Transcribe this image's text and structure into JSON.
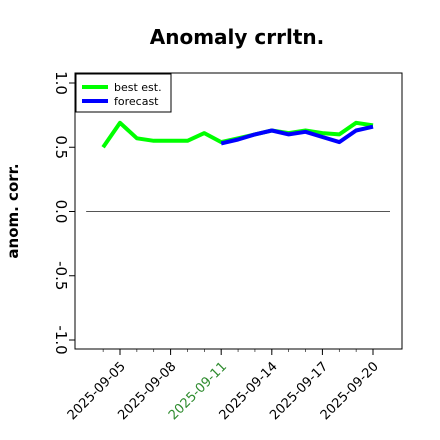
{
  "chart_data": {
    "type": "line",
    "title": "Anomaly crrltn.",
    "xlabel": "",
    "ylabel": "anom. corr.",
    "ylim": [
      -1.0,
      1.0
    ],
    "yticks": [
      "-1.0",
      "-0.5",
      "0.0",
      "0.5",
      "1.0"
    ],
    "x_tick_labels": [
      "2025-09-05",
      "2025-09-08",
      "2025-09-11",
      "2025-09-14",
      "2025-09-17",
      "2025-09-20"
    ],
    "highlighted_tick": "2025-09-11",
    "highlight_color": "#2e8b2e",
    "reference_line_y": 0.0,
    "legend_placement": "top-left",
    "grid": false,
    "series": [
      {
        "name": "best est.",
        "color": "#00ff00",
        "points": [
          {
            "x": "2025-09-04",
            "y": 0.5
          },
          {
            "x": "2025-09-05",
            "y": 0.69
          },
          {
            "x": "2025-09-06",
            "y": 0.57
          },
          {
            "x": "2025-09-07",
            "y": 0.55
          },
          {
            "x": "2025-09-08",
            "y": 0.55
          },
          {
            "x": "2025-09-09",
            "y": 0.55
          },
          {
            "x": "2025-09-10",
            "y": 0.61
          },
          {
            "x": "2025-09-11",
            "y": 0.54
          },
          {
            "x": "2025-09-12",
            "y": 0.57
          },
          {
            "x": "2025-09-13",
            "y": 0.6
          },
          {
            "x": "2025-09-14",
            "y": 0.63
          },
          {
            "x": "2025-09-15",
            "y": 0.61
          },
          {
            "x": "2025-09-16",
            "y": 0.63
          },
          {
            "x": "2025-09-17",
            "y": 0.61
          },
          {
            "x": "2025-09-18",
            "y": 0.6
          },
          {
            "x": "2025-09-19",
            "y": 0.69
          },
          {
            "x": "2025-09-20",
            "y": 0.67
          }
        ]
      },
      {
        "name": "forecast",
        "color": "#0000ff",
        "points": [
          {
            "x": "2025-09-11",
            "y": 0.53
          },
          {
            "x": "2025-09-12",
            "y": 0.56
          },
          {
            "x": "2025-09-13",
            "y": 0.6
          },
          {
            "x": "2025-09-14",
            "y": 0.63
          },
          {
            "x": "2025-09-15",
            "y": 0.6
          },
          {
            "x": "2025-09-16",
            "y": 0.62
          },
          {
            "x": "2025-09-17",
            "y": 0.58
          },
          {
            "x": "2025-09-18",
            "y": 0.54
          },
          {
            "x": "2025-09-19",
            "y": 0.63
          },
          {
            "x": "2025-09-20",
            "y": 0.66
          }
        ]
      }
    ]
  }
}
